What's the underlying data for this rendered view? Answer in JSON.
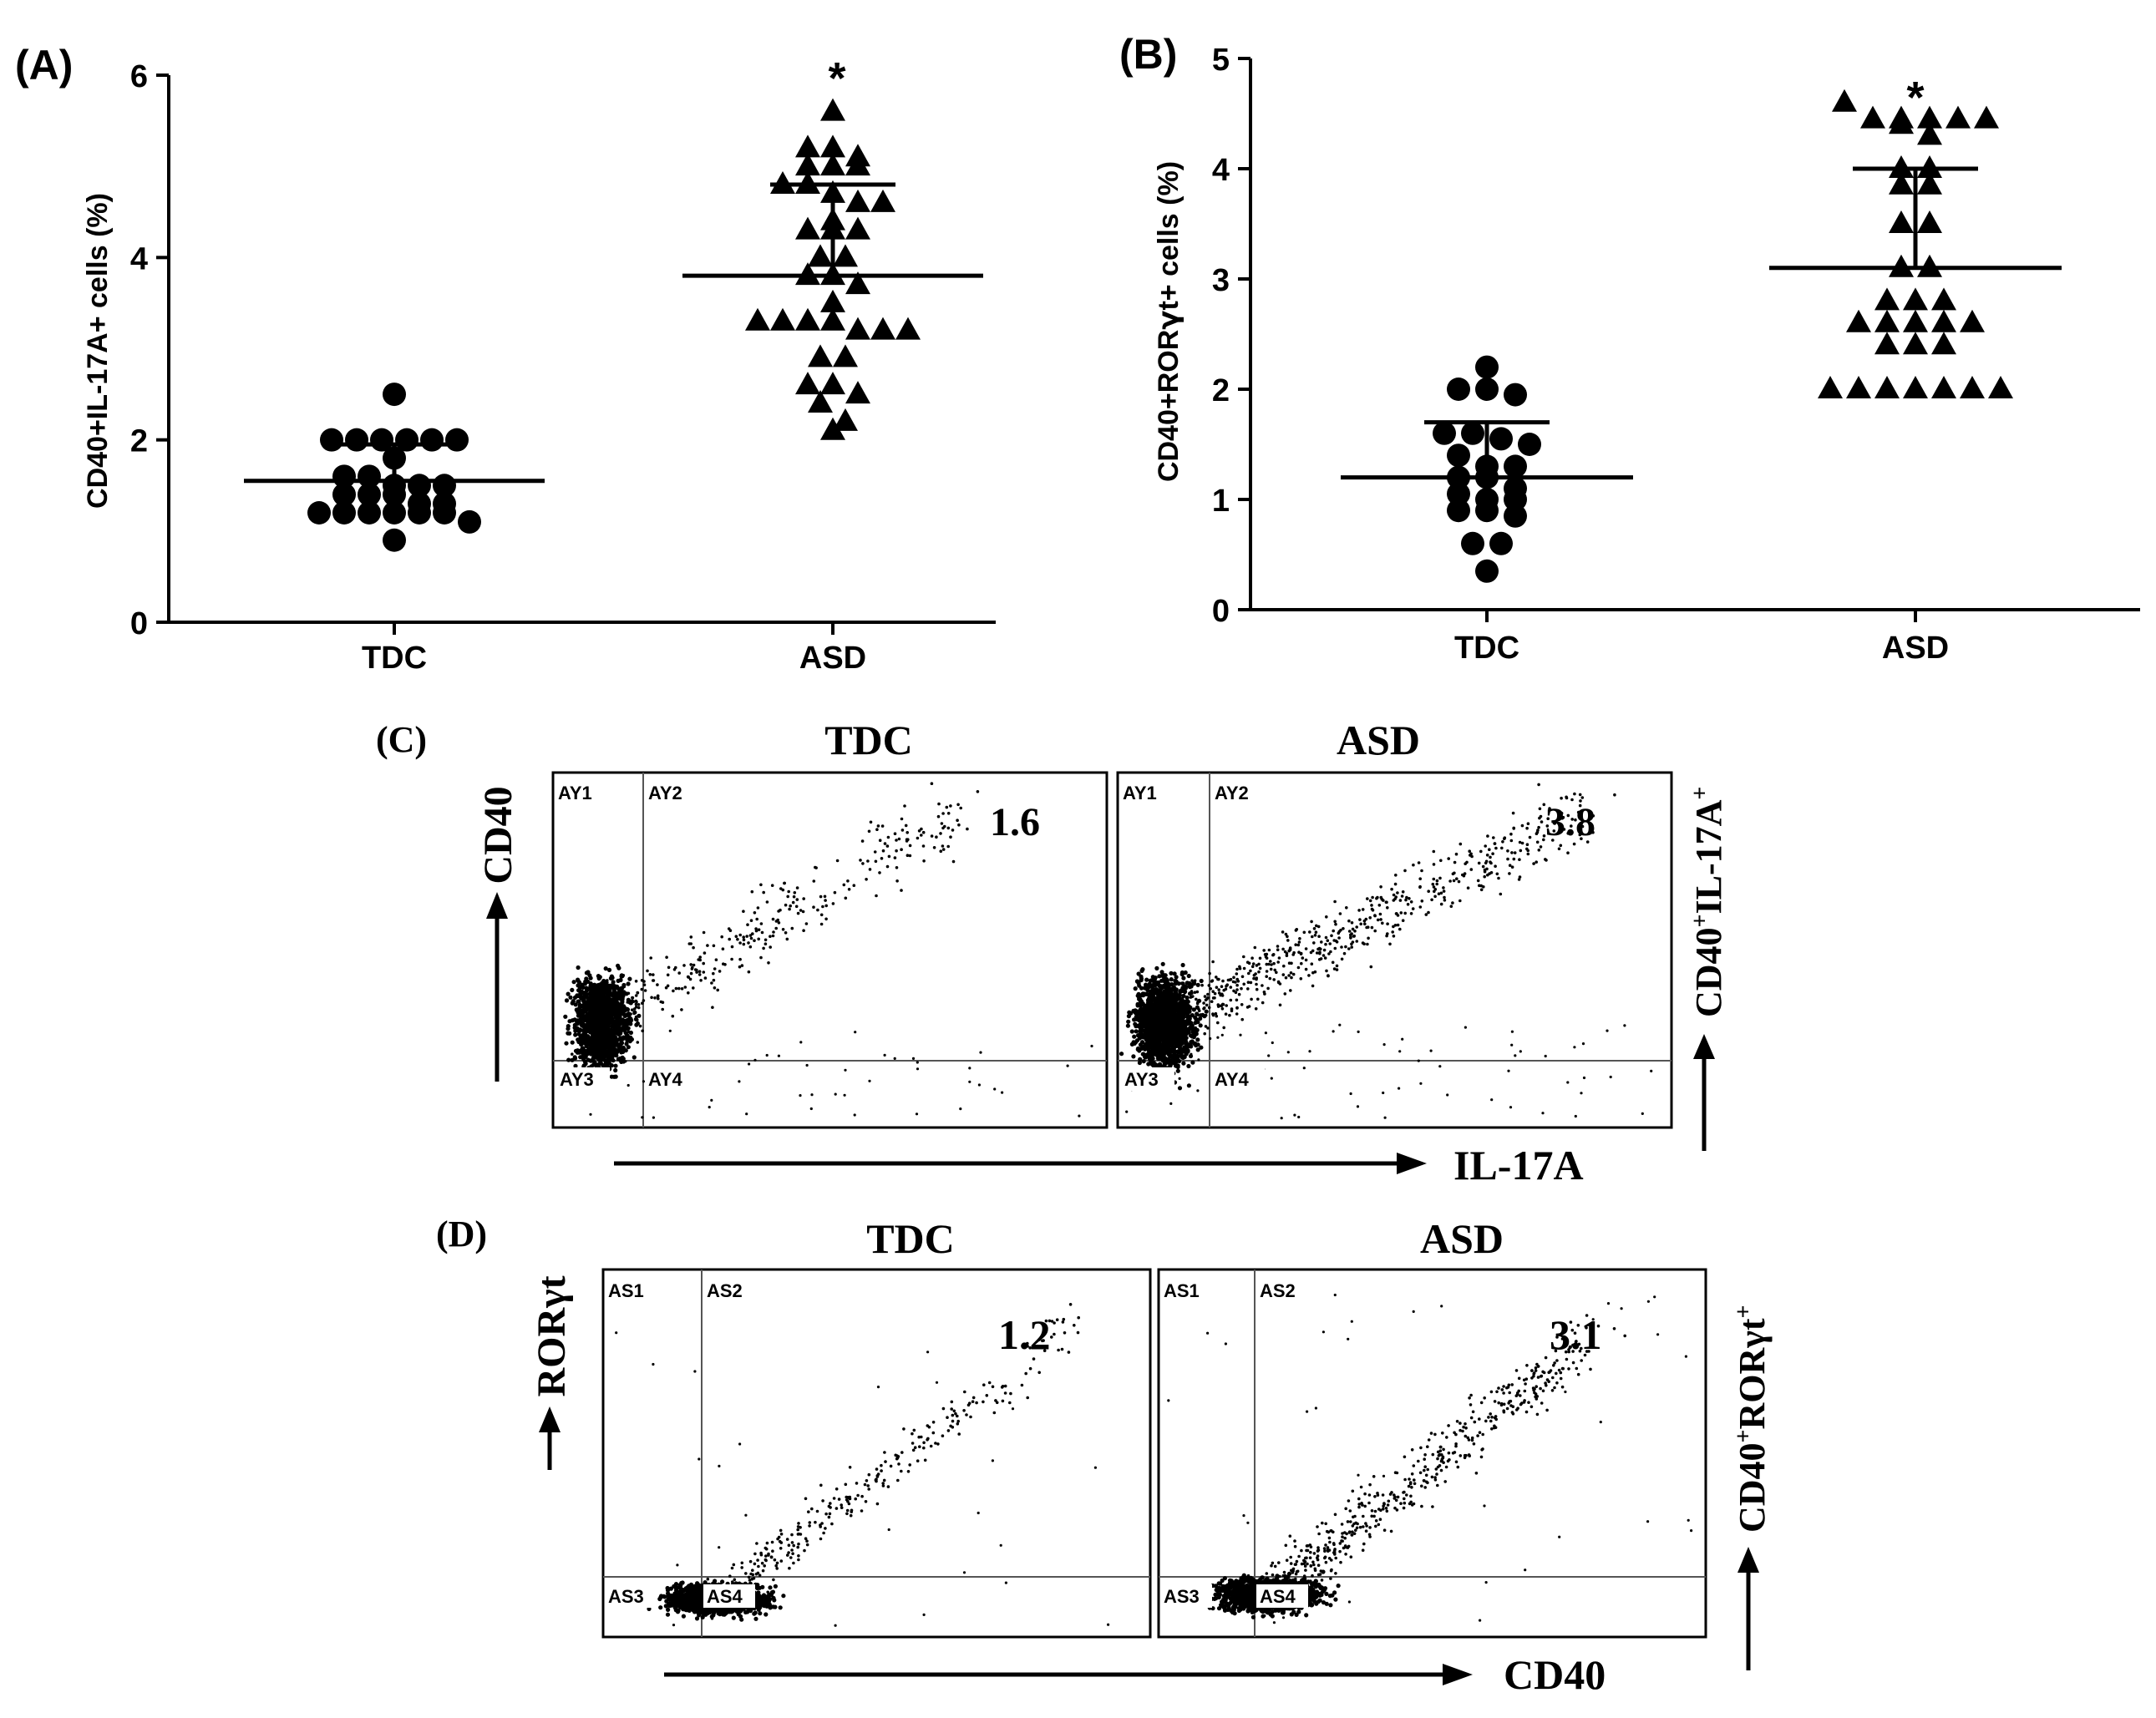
{
  "chart_data": [
    {
      "panel": "(A)",
      "type": "scatter",
      "ylabel": "CD40+IL-17A+ cells (%)",
      "categories": [
        "TDC",
        "ASD"
      ],
      "ylim": [
        0,
        6
      ],
      "yticks": [
        "0",
        "2",
        "4",
        "6"
      ],
      "significance": "*",
      "series": [
        {
          "name": "TDC",
          "marker": "circle",
          "values": [
            2.5,
            2.0,
            2.0,
            2.0,
            2.0,
            2.0,
            2.0,
            1.8,
            1.6,
            1.6,
            1.5,
            1.5,
            1.5,
            1.4,
            1.4,
            1.4,
            1.3,
            1.3,
            1.2,
            1.2,
            1.2,
            1.2,
            1.2,
            1.2,
            1.1,
            0.9
          ],
          "mean": 1.55,
          "sd_upper": 1.95,
          "sd_lower": 1.15
        },
        {
          "name": "ASD",
          "marker": "triangle",
          "values": [
            5.6,
            5.2,
            5.2,
            5.1,
            5.0,
            5.0,
            5.0,
            4.8,
            4.8,
            4.7,
            4.6,
            4.6,
            4.4,
            4.3,
            4.3,
            4.3,
            4.0,
            4.0,
            3.8,
            3.8,
            3.7,
            3.5,
            3.3,
            3.3,
            3.3,
            3.3,
            3.2,
            3.2,
            3.2,
            2.9,
            2.9,
            2.6,
            2.6,
            2.5,
            2.4,
            2.2,
            2.1
          ],
          "mean": 3.8,
          "sd_upper": 4.8,
          "sd_lower": 2.8
        }
      ]
    },
    {
      "panel": "(B)",
      "type": "scatter",
      "ylabel_parts": [
        "CD40+ROR",
        "γ",
        "t+ cells (%)"
      ],
      "categories": [
        "TDC",
        "ASD"
      ],
      "ylim": [
        0,
        5
      ],
      "yticks": [
        "0",
        "1",
        "2",
        "3",
        "4",
        "5"
      ],
      "significance": "*",
      "series": [
        {
          "name": "TDC",
          "marker": "circle",
          "values": [
            2.2,
            2.0,
            2.0,
            1.95,
            1.6,
            1.6,
            1.55,
            1.5,
            1.4,
            1.3,
            1.3,
            1.2,
            1.2,
            1.1,
            1.05,
            1.0,
            1.0,
            0.9,
            0.9,
            0.85,
            0.6,
            0.6,
            0.35
          ],
          "mean": 1.2,
          "sd_upper": 1.7,
          "sd_lower": 0.7
        },
        {
          "name": "ASD",
          "marker": "triangle",
          "values": [
            4.6,
            4.45,
            4.45,
            4.45,
            4.45,
            4.45,
            4.4,
            4.3,
            4.0,
            4.0,
            3.85,
            3.85,
            3.5,
            3.5,
            3.1,
            3.1,
            2.8,
            2.8,
            2.8,
            2.6,
            2.6,
            2.6,
            2.6,
            2.6,
            2.4,
            2.4,
            2.4,
            2.0,
            2.0,
            2.0,
            2.0,
            2.0,
            2.0,
            2.0
          ],
          "mean": 3.1,
          "sd_upper": 4.0,
          "sd_lower": 2.2
        }
      ]
    },
    {
      "panel": "(C)",
      "type": "scatter",
      "subtype": "flow-cytometry-dot-plot",
      "xlabel": "IL-17A",
      "ylabel": "CD40",
      "right_label": {
        "main": "CD40",
        "sup1": "+",
        "mid": "IL-17A",
        "sup2": "+"
      },
      "plots": [
        {
          "title": "TDC",
          "value": "1.6",
          "quadrants": [
            "AY1",
            "AY2",
            "AY3",
            "AY4"
          ]
        },
        {
          "title": "ASD",
          "value": "3.8",
          "quadrants": [
            "AY1",
            "AY2",
            "AY3",
            "AY4"
          ]
        }
      ]
    },
    {
      "panel": "(D)",
      "type": "scatter",
      "subtype": "flow-cytometry-dot-plot",
      "xlabel": "CD40",
      "ylabel": "RORγt",
      "right_label": {
        "main": "CD40",
        "sup1": "+",
        "mid": "RORγt",
        "sup2": "+"
      },
      "plots": [
        {
          "title": "TDC",
          "value": "1.2",
          "quadrants": [
            "AS1",
            "AS2",
            "AS3",
            "AS4"
          ]
        },
        {
          "title": "ASD",
          "value": "3.1",
          "quadrants": [
            "AS1",
            "AS2",
            "AS3",
            "AS4"
          ]
        }
      ]
    }
  ]
}
